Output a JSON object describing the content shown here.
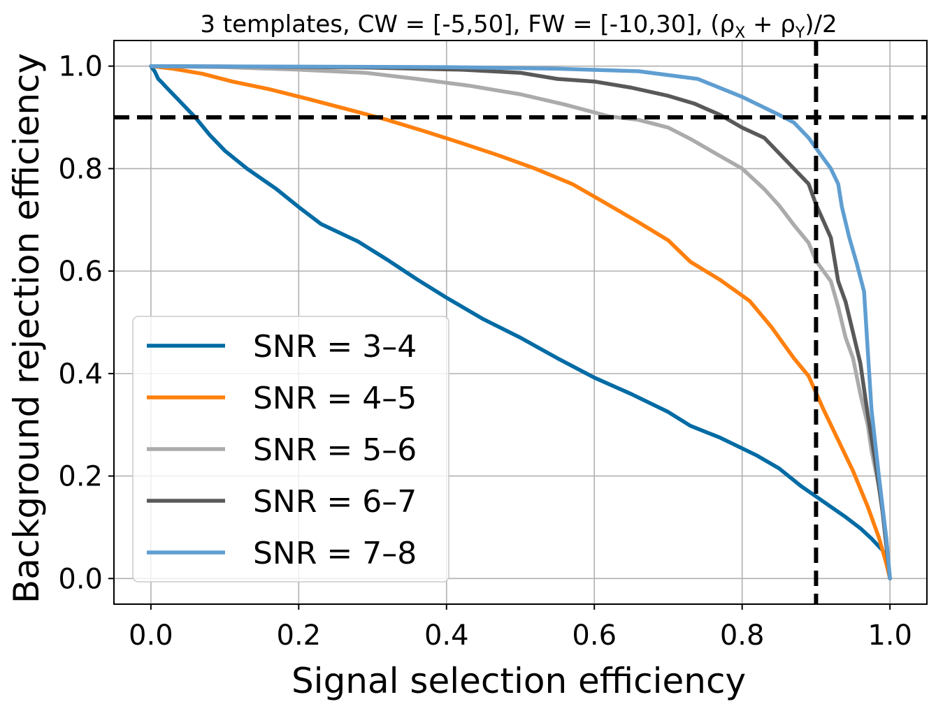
{
  "chart_data": {
    "type": "line",
    "title": "3 templates, CW = [-5,50], FW = [-10,30], (ρ",
    "title_sub1": "X",
    "title_mid": " + ρ",
    "title_sub2": "Y",
    "title_end": ")/2",
    "xlabel": "Signal selection efficiency",
    "ylabel": "Background rejection efficiency",
    "xlim": [
      -0.05,
      1.05
    ],
    "ylim": [
      -0.05,
      1.05
    ],
    "xticks": [
      0.0,
      0.2,
      0.4,
      0.6,
      0.8,
      1.0
    ],
    "xtick_labels": [
      "0.0",
      "0.2",
      "0.4",
      "0.6",
      "0.8",
      "1.0"
    ],
    "yticks": [
      0.0,
      0.2,
      0.4,
      0.6,
      0.8,
      1.0
    ],
    "ytick_labels": [
      "0.0",
      "0.2",
      "0.4",
      "0.6",
      "0.8",
      "1.0"
    ],
    "grid": true,
    "legend_position": "lower-left",
    "reference_lines": {
      "horizontal_y": 0.9,
      "vertical_x": 0.9,
      "style": "dashed",
      "color": "#000000"
    },
    "series": [
      {
        "name": "SNR = 3–4",
        "color": "#006ba4",
        "x": [
          0.0,
          0.005,
          0.01,
          0.015,
          0.02,
          0.03,
          0.04,
          0.06,
          0.08,
          0.1,
          0.13,
          0.17,
          0.2,
          0.23,
          0.28,
          0.32,
          0.36,
          0.4,
          0.45,
          0.5,
          0.55,
          0.6,
          0.65,
          0.7,
          0.73,
          0.77,
          0.82,
          0.85,
          0.88,
          0.9,
          0.92,
          0.94,
          0.96,
          0.975,
          0.99,
          0.997,
          1.0
        ],
        "y": [
          1.0,
          0.99,
          0.975,
          0.968,
          0.96,
          0.945,
          0.93,
          0.9,
          0.865,
          0.835,
          0.8,
          0.76,
          0.725,
          0.692,
          0.658,
          0.622,
          0.584,
          0.548,
          0.506,
          0.47,
          0.43,
          0.392,
          0.36,
          0.325,
          0.298,
          0.275,
          0.24,
          0.215,
          0.18,
          0.16,
          0.14,
          0.12,
          0.098,
          0.078,
          0.055,
          0.03,
          0.0
        ]
      },
      {
        "name": "SNR = 4–5",
        "color": "#ff800e",
        "x": [
          0.0,
          0.03,
          0.07,
          0.11,
          0.16,
          0.21,
          0.26,
          0.32,
          0.37,
          0.42,
          0.47,
          0.52,
          0.57,
          0.61,
          0.66,
          0.7,
          0.73,
          0.77,
          0.81,
          0.84,
          0.87,
          0.89,
          0.91,
          0.93,
          0.95,
          0.97,
          0.985,
          0.995,
          1.0
        ],
        "y": [
          1.0,
          0.995,
          0.985,
          0.97,
          0.955,
          0.937,
          0.918,
          0.895,
          0.873,
          0.85,
          0.826,
          0.8,
          0.77,
          0.737,
          0.695,
          0.66,
          0.618,
          0.583,
          0.542,
          0.49,
          0.43,
          0.395,
          0.33,
          0.27,
          0.21,
          0.14,
          0.08,
          0.03,
          0.0
        ]
      },
      {
        "name": "SNR = 5–6",
        "color": "#ababab",
        "x": [
          0.0,
          0.1,
          0.2,
          0.29,
          0.36,
          0.43,
          0.5,
          0.56,
          0.62,
          0.66,
          0.7,
          0.73,
          0.76,
          0.8,
          0.83,
          0.85,
          0.87,
          0.89,
          0.9,
          0.92,
          0.93,
          0.94,
          0.95,
          0.96,
          0.97,
          0.975,
          0.985,
          0.995,
          1.0
        ],
        "y": [
          1.0,
          0.998,
          0.993,
          0.987,
          0.975,
          0.962,
          0.945,
          0.925,
          0.902,
          0.895,
          0.88,
          0.858,
          0.833,
          0.8,
          0.76,
          0.728,
          0.69,
          0.655,
          0.62,
          0.58,
          0.53,
          0.47,
          0.43,
          0.36,
          0.3,
          0.25,
          0.18,
          0.08,
          0.0
        ]
      },
      {
        "name": "SNR = 6–7",
        "color": "#595959",
        "x": [
          0.0,
          0.15,
          0.3,
          0.42,
          0.5,
          0.55,
          0.6,
          0.65,
          0.7,
          0.735,
          0.77,
          0.8,
          0.83,
          0.85,
          0.87,
          0.89,
          0.9,
          0.92,
          0.93,
          0.94,
          0.95,
          0.96,
          0.97,
          0.98,
          0.99,
          1.0
        ],
        "y": [
          1.0,
          0.999,
          0.997,
          0.993,
          0.987,
          0.975,
          0.97,
          0.958,
          0.942,
          0.927,
          0.905,
          0.88,
          0.86,
          0.83,
          0.8,
          0.77,
          0.73,
          0.665,
          0.58,
          0.54,
          0.48,
          0.42,
          0.32,
          0.23,
          0.13,
          0.0
        ]
      },
      {
        "name": "SNR = 7–8",
        "color": "#5f9ed1",
        "x": [
          0.0,
          0.2,
          0.4,
          0.55,
          0.66,
          0.74,
          0.8,
          0.85,
          0.87,
          0.89,
          0.9,
          0.92,
          0.93,
          0.935,
          0.945,
          0.955,
          0.965,
          0.975,
          0.985,
          0.995,
          1.0
        ],
        "y": [
          1.0,
          0.999,
          0.998,
          0.995,
          0.99,
          0.975,
          0.94,
          0.905,
          0.89,
          0.86,
          0.84,
          0.8,
          0.77,
          0.725,
          0.665,
          0.615,
          0.56,
          0.33,
          0.2,
          0.08,
          0.0
        ]
      }
    ]
  }
}
